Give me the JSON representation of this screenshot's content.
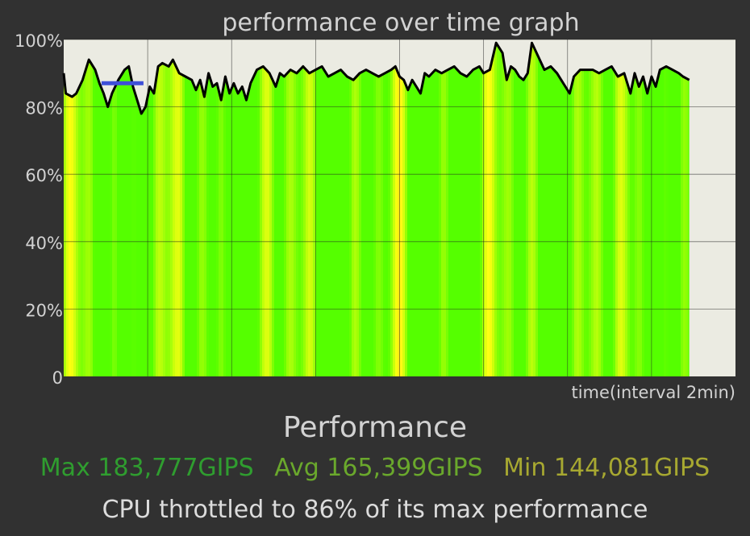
{
  "chart_data": {
    "type": "line",
    "title": "performance over time graph",
    "xlabel": "time(interval 2min)",
    "ylabel": "",
    "ylim": [
      0,
      100
    ],
    "yticks": [
      "0",
      "20%",
      "40%",
      "60%",
      "80%",
      "100%"
    ],
    "y_tick_values": [
      0,
      20,
      40,
      60,
      80,
      100
    ],
    "x_total_minutes": 16,
    "x_data_end_minutes": 14.9,
    "grid": true,
    "series": [
      {
        "name": "",
        "color": "#000000",
        "fill": "gradient green to yellow",
        "points": [
          [
            0,
            90
          ],
          [
            0.05,
            84
          ],
          [
            0.2,
            83
          ],
          [
            0.3,
            84
          ],
          [
            0.45,
            88
          ],
          [
            0.6,
            94
          ],
          [
            0.75,
            91
          ],
          [
            0.85,
            87
          ],
          [
            0.95,
            84
          ],
          [
            1.05,
            80
          ],
          [
            1.15,
            84
          ],
          [
            1.3,
            88
          ],
          [
            1.45,
            91
          ],
          [
            1.55,
            92
          ],
          [
            1.65,
            86
          ],
          [
            1.75,
            82
          ],
          [
            1.85,
            78
          ],
          [
            1.95,
            80
          ],
          [
            2.05,
            86
          ],
          [
            2.15,
            84
          ],
          [
            2.25,
            92
          ],
          [
            2.35,
            93
          ],
          [
            2.5,
            92
          ],
          [
            2.6,
            94
          ],
          [
            2.75,
            90
          ],
          [
            2.9,
            89
          ],
          [
            3.05,
            88
          ],
          [
            3.15,
            85
          ],
          [
            3.25,
            88
          ],
          [
            3.35,
            83
          ],
          [
            3.45,
            90
          ],
          [
            3.55,
            86
          ],
          [
            3.65,
            87
          ],
          [
            3.75,
            82
          ],
          [
            3.85,
            89
          ],
          [
            3.95,
            84
          ],
          [
            4.05,
            87
          ],
          [
            4.15,
            84
          ],
          [
            4.25,
            86
          ],
          [
            4.35,
            82
          ],
          [
            4.45,
            87
          ],
          [
            4.6,
            91
          ],
          [
            4.75,
            92
          ],
          [
            4.9,
            90
          ],
          [
            5.05,
            86
          ],
          [
            5.15,
            90
          ],
          [
            5.25,
            89
          ],
          [
            5.4,
            91
          ],
          [
            5.55,
            90
          ],
          [
            5.7,
            92
          ],
          [
            5.85,
            90
          ],
          [
            6,
            91
          ],
          [
            6.15,
            92
          ],
          [
            6.3,
            89
          ],
          [
            6.45,
            90
          ],
          [
            6.6,
            91
          ],
          [
            6.75,
            89
          ],
          [
            6.9,
            88
          ],
          [
            7.05,
            90
          ],
          [
            7.2,
            91
          ],
          [
            7.35,
            90
          ],
          [
            7.5,
            89
          ],
          [
            7.65,
            90
          ],
          [
            7.8,
            91
          ],
          [
            7.9,
            92
          ],
          [
            8.0,
            89
          ],
          [
            8.1,
            88
          ],
          [
            8.2,
            85
          ],
          [
            8.3,
            88
          ],
          [
            8.4,
            86
          ],
          [
            8.5,
            84
          ],
          [
            8.6,
            90
          ],
          [
            8.7,
            89
          ],
          [
            8.85,
            91
          ],
          [
            9.0,
            90
          ],
          [
            9.15,
            91
          ],
          [
            9.3,
            92
          ],
          [
            9.45,
            90
          ],
          [
            9.6,
            89
          ],
          [
            9.75,
            91
          ],
          [
            9.9,
            92
          ],
          [
            10.0,
            90
          ],
          [
            10.15,
            91
          ],
          [
            10.3,
            99
          ],
          [
            10.45,
            96
          ],
          [
            10.55,
            88
          ],
          [
            10.65,
            92
          ],
          [
            10.75,
            91
          ],
          [
            10.85,
            89
          ],
          [
            10.95,
            88
          ],
          [
            11.05,
            90
          ],
          [
            11.15,
            99
          ],
          [
            11.3,
            95
          ],
          [
            11.45,
            91
          ],
          [
            11.6,
            92
          ],
          [
            11.75,
            90
          ],
          [
            11.85,
            88
          ],
          [
            11.95,
            86
          ],
          [
            12.05,
            84
          ],
          [
            12.15,
            89
          ],
          [
            12.3,
            91
          ],
          [
            12.45,
            91
          ],
          [
            12.6,
            91
          ],
          [
            12.75,
            90
          ],
          [
            12.9,
            91
          ],
          [
            13.05,
            92
          ],
          [
            13.2,
            89
          ],
          [
            13.35,
            90
          ],
          [
            13.5,
            84
          ],
          [
            13.6,
            90
          ],
          [
            13.7,
            86
          ],
          [
            13.8,
            89
          ],
          [
            13.9,
            84
          ],
          [
            14.0,
            89
          ],
          [
            14.1,
            86
          ],
          [
            14.2,
            91
          ],
          [
            14.35,
            92
          ],
          [
            14.5,
            91
          ],
          [
            14.65,
            90
          ],
          [
            14.75,
            89
          ],
          [
            14.9,
            88
          ]
        ]
      },
      {
        "name": "",
        "color": "#3e4fd8",
        "points": [
          [
            0.9,
            87
          ],
          [
            1.9,
            87
          ]
        ]
      }
    ]
  },
  "stats": {
    "title": "Performance",
    "max": "Max 183,777GIPS",
    "avg": "Avg 165,399GIPS",
    "min": "Min 144,081GIPS",
    "max_color": "#2f9d2f",
    "avg_color": "#6aa82c",
    "min_color": "#a7a831",
    "summary": "CPU throttled to 86% of its max performance"
  }
}
